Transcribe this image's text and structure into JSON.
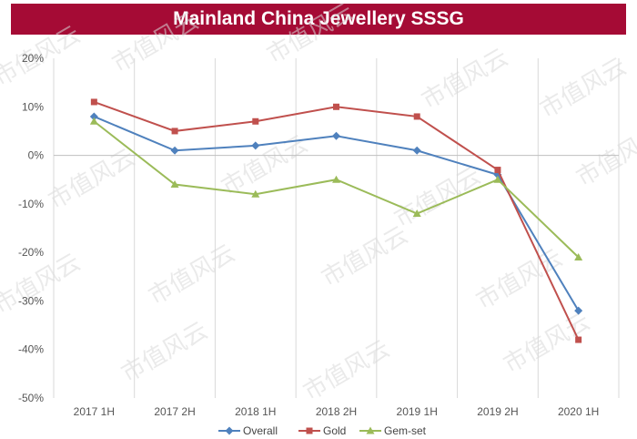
{
  "chart_data": {
    "type": "line",
    "title": "Mainland China Jewellery SSSG",
    "categories": [
      "2017 1H",
      "2017 2H",
      "2018 1H",
      "2018 2H",
      "2019 1H",
      "2019 2H",
      "2020 1H"
    ],
    "ylim": [
      -50,
      20
    ],
    "yticks": [
      20,
      10,
      0,
      -10,
      -20,
      -30,
      -40,
      -50
    ],
    "ytick_suffix": "%",
    "grid": "vertical",
    "legend_position": "bottom",
    "series": [
      {
        "name": "Overall",
        "color": "#4f81bd",
        "marker": "diamond",
        "values": [
          8,
          1,
          2,
          4,
          1,
          -4,
          -32
        ]
      },
      {
        "name": "Gold",
        "color": "#c0504d",
        "marker": "square",
        "values": [
          11,
          5,
          7,
          10,
          8,
          -3,
          -38
        ]
      },
      {
        "name": "Gem-set",
        "color": "#9bbb59",
        "marker": "triangle",
        "values": [
          7,
          -6,
          -8,
          -5,
          -12,
          -5,
          -21
        ]
      }
    ]
  },
  "watermark": "市值风云"
}
